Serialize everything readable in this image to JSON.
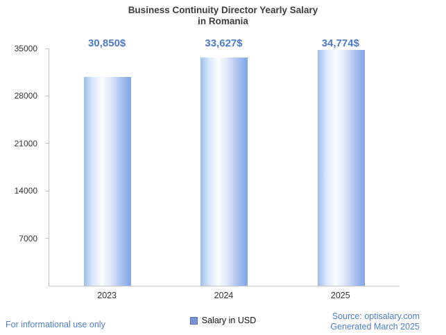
{
  "chart_data": {
    "type": "bar",
    "title": "Business Continuity Director Yearly Salary in Romania",
    "title_lines": [
      "Business Continuity Director Yearly Salary",
      "in Romania"
    ],
    "categories": [
      "2023",
      "2024",
      "2025"
    ],
    "values": [
      30850,
      33627,
      34774
    ],
    "value_labels": [
      "30,850$",
      "33,627$",
      "34,774$"
    ],
    "ylim": [
      0,
      35000
    ],
    "yticks": [
      35000,
      28000,
      21000,
      14000,
      7000
    ],
    "grid": false,
    "legend_position": "bottom",
    "legend_label": "Salary in USD"
  },
  "footer": {
    "left": "For informational use only",
    "source": "Source: optisalary.com",
    "generated": "Generated March 2025"
  },
  "colors": {
    "accent_text": "#4a7bd4",
    "bar_gradient_left": "#9dbef0",
    "bar_gradient_mid": "#fbfdff",
    "bar_gradient_right": "#7fa3ea",
    "legend_square": "#7b93d6",
    "axis_line": "#c6c6c6",
    "title_text": "#3d3d3d"
  }
}
